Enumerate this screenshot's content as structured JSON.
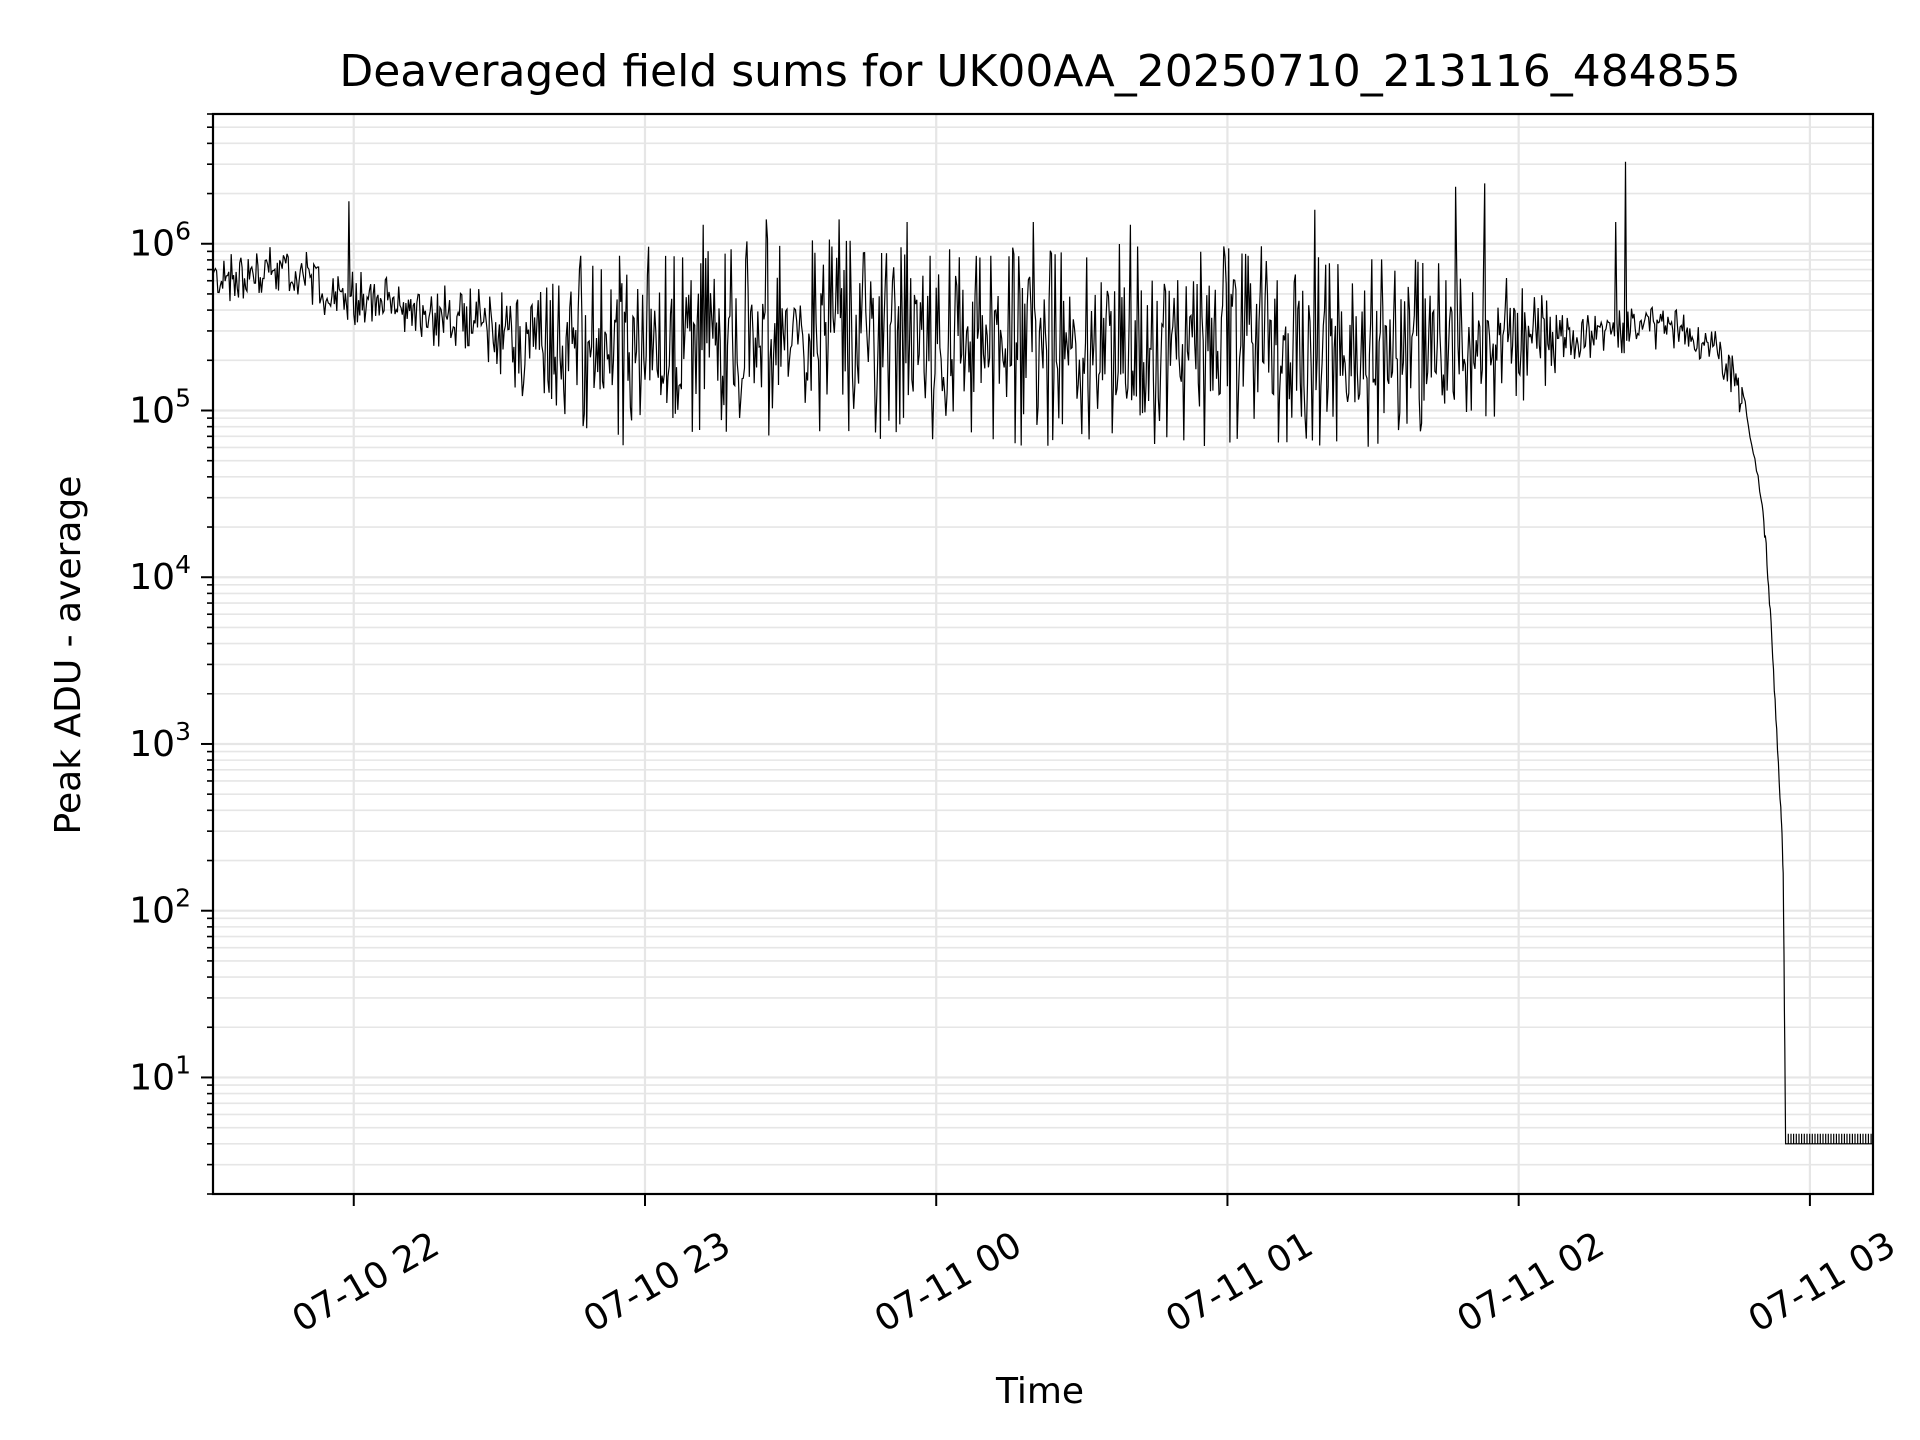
{
  "chart_data": {
    "type": "line",
    "title": "Deaveraged field sums for UK00AA_20250710_213116_484855",
    "xlabel": "Time",
    "ylabel": "Peak ADU - average",
    "yscale": "log",
    "ylim": [
      2,
      6000000
    ],
    "xlim": [
      "2025-07-10 21:31",
      "2025-07-11 03:13"
    ],
    "grid": true,
    "line_color": "#000000",
    "grid_color": "#e6e6e6",
    "xticks": [
      {
        "value": "2025-07-10 22:00",
        "label": "07-10 22"
      },
      {
        "value": "2025-07-10 23:00",
        "label": "07-10 23"
      },
      {
        "value": "2025-07-11 00:00",
        "label": "07-11 00"
      },
      {
        "value": "2025-07-11 01:00",
        "label": "07-11 01"
      },
      {
        "value": "2025-07-11 02:00",
        "label": "07-11 02"
      },
      {
        "value": "2025-07-11 03:00",
        "label": "07-11 03"
      }
    ],
    "yticks": [
      {
        "value": 10,
        "base": "10",
        "exp": "1"
      },
      {
        "value": 100,
        "base": "10",
        "exp": "2"
      },
      {
        "value": 1000,
        "base": "10",
        "exp": "3"
      },
      {
        "value": 10000,
        "base": "10",
        "exp": "4"
      },
      {
        "value": 100000,
        "base": "10",
        "exp": "5"
      },
      {
        "value": 1000000,
        "base": "10",
        "exp": "6"
      }
    ],
    "series": [
      {
        "envelope": [
          {
            "x": "2025-07-10 21:31",
            "low": 420000,
            "high": 900000
          },
          {
            "x": "2025-07-10 21:45",
            "low": 450000,
            "high": 1000000
          },
          {
            "x": "2025-07-10 21:58",
            "low": 330000,
            "high": 800000
          },
          {
            "x": "2025-07-10 22:10",
            "low": 250000,
            "high": 600000
          },
          {
            "x": "2025-07-10 22:25",
            "low": 200000,
            "high": 550000
          },
          {
            "x": "2025-07-10 22:40",
            "low": 80000,
            "high": 750000
          },
          {
            "x": "2025-07-10 22:55",
            "low": 60000,
            "high": 1000000
          },
          {
            "x": "2025-07-10 23:10",
            "low": 60000,
            "high": 1000000
          },
          {
            "x": "2025-07-10 23:30",
            "low": 60000,
            "high": 1100000
          },
          {
            "x": "2025-07-11 00:00",
            "low": 60000,
            "high": 1000000
          },
          {
            "x": "2025-07-11 00:30",
            "low": 60000,
            "high": 1000000
          },
          {
            "x": "2025-07-11 01:00",
            "low": 60000,
            "high": 1000000
          },
          {
            "x": "2025-07-11 01:30",
            "low": 60000,
            "high": 900000
          },
          {
            "x": "2025-07-11 02:00",
            "low": 100000,
            "high": 700000
          },
          {
            "x": "2025-07-11 02:10",
            "low": 180000,
            "high": 400000
          },
          {
            "x": "2025-07-11 02:30",
            "low": 230000,
            "high": 450000
          },
          {
            "x": "2025-07-11 02:40",
            "low": 190000,
            "high": 350000
          },
          {
            "x": "2025-07-11 02:46",
            "low": 90000,
            "high": 200000
          }
        ],
        "spikes": [
          {
            "x": "2025-07-10 21:59",
            "y": 1800000
          },
          {
            "x": "2025-07-10 23:12",
            "y": 1300000
          },
          {
            "x": "2025-07-10 23:25",
            "y": 1400000
          },
          {
            "x": "2025-07-10 23:40",
            "y": 1400000
          },
          {
            "x": "2025-07-10 23:54",
            "y": 1350000
          },
          {
            "x": "2025-07-11 00:20",
            "y": 1350000
          },
          {
            "x": "2025-07-11 00:40",
            "y": 1300000
          },
          {
            "x": "2025-07-11 01:18",
            "y": 1600000
          },
          {
            "x": "2025-07-11 01:47",
            "y": 2200000
          },
          {
            "x": "2025-07-11 01:53",
            "y": 2300000
          },
          {
            "x": "2025-07-11 02:20",
            "y": 1350000
          },
          {
            "x": "2025-07-11 02:22",
            "y": 3100000
          }
        ],
        "decay": [
          {
            "x": "2025-07-11 02:46",
            "y": 150000
          },
          {
            "x": "2025-07-11 02:48",
            "y": 60000
          },
          {
            "x": "2025-07-11 02:50",
            "y": 30000
          },
          {
            "x": "2025-07-11 02:51",
            "y": 15000
          },
          {
            "x": "2025-07-11 02:52",
            "y": 5000
          },
          {
            "x": "2025-07-11 02:53",
            "y": 1500
          },
          {
            "x": "2025-07-11 02:54",
            "y": 400
          },
          {
            "x": "2025-07-11 02:54.5",
            "y": 180
          },
          {
            "x": "2025-07-11 02:55",
            "y": 4
          }
        ],
        "floor": {
          "from": "2025-07-11 02:55",
          "to": "2025-07-11 03:13",
          "low": 4,
          "high": 4.6
        }
      }
    ]
  }
}
